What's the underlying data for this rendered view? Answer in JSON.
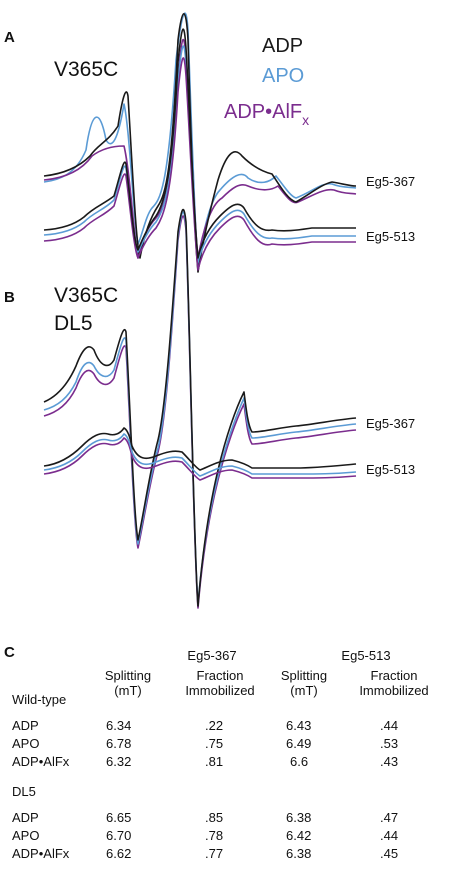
{
  "panelA": {
    "letter": "A",
    "mutant": "V365C",
    "legend": {
      "adp": "ADP",
      "apo": "APO",
      "adp_alf_main": "ADP•AlF",
      "adp_alf_sub": "x"
    },
    "trace_labels": [
      "Eg5-367",
      "Eg5-513"
    ]
  },
  "panelB": {
    "letter": "B",
    "mutant_line1": "V365C",
    "mutant_line2": "DL5",
    "trace_labels": [
      "Eg5-367",
      "Eg5-513"
    ]
  },
  "colors": {
    "adp": "#1a1a1a",
    "apo": "#5b9bd5",
    "adp_alf": "#7b2d8e"
  },
  "table": {
    "letter": "C",
    "groups": [
      "Eg5-367",
      "Eg5-513"
    ],
    "row_header": "Wild-type",
    "col_headers": [
      "Splitting\n(mT)",
      "Fraction\nImmobilized",
      "Splitting\n(mT)",
      "Fraction\nImmobilized"
    ],
    "wildtype_rows": [
      [
        "ADP",
        "6.34",
        ".22",
        "6.43",
        ".44"
      ],
      [
        "APO",
        "6.78",
        ".75",
        "6.49",
        ".53"
      ],
      [
        "ADP•AlFx",
        "6.32",
        ".81",
        "6.6",
        ".43"
      ]
    ],
    "dl5_header": "DL5",
    "dl5_rows": [
      [
        "ADP",
        "6.65",
        ".85",
        "6.38",
        ".47"
      ],
      [
        "APO",
        "6.70",
        ".78",
        "6.42",
        ".44"
      ],
      [
        "ADP•AlFx",
        "6.62",
        ".77",
        "6.38",
        ".45"
      ]
    ]
  }
}
